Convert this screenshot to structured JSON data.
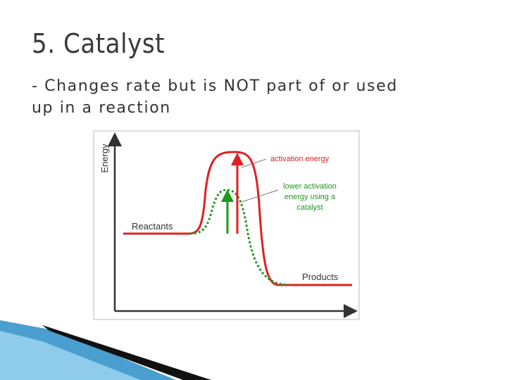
{
  "slide": {
    "title": "5. Catalyst",
    "bullet": "- Changes rate but is NOT part of or used up in a reaction"
  },
  "diagram": {
    "y_axis_label": "Energy",
    "annotations": {
      "activation": "activation energy",
      "catalyst": [
        "lower activation",
        "energy using a",
        "catalyst"
      ]
    },
    "reactants": "Reactants",
    "products": "Products"
  }
}
